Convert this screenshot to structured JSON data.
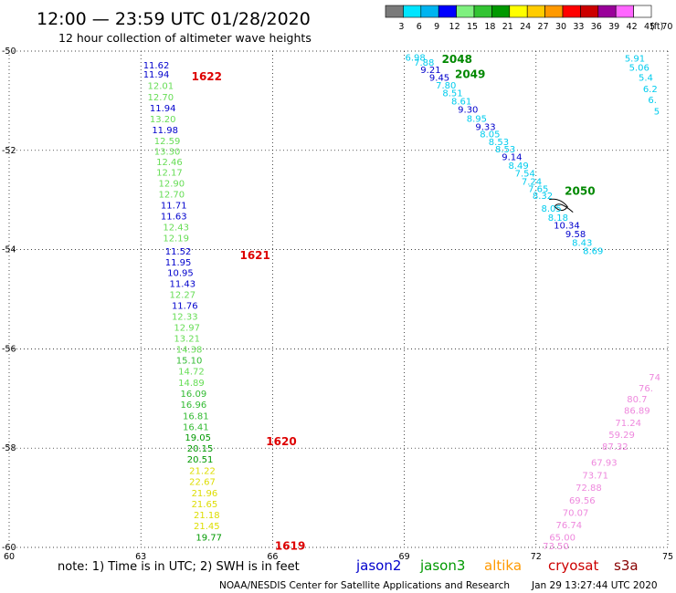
{
  "header": {
    "title": "12:00 — 23:59 UTC 01/28/2020",
    "subtitle": "12 hour collection of altimeter wave heights"
  },
  "color_scale": {
    "labels": [
      "3",
      "6",
      "9",
      "12",
      "15",
      "18",
      "21",
      "24",
      "27",
      "30",
      "33",
      "36",
      "39",
      "42",
      "45",
      "70"
    ],
    "unit": "(ft)",
    "colors": [
      "#7a7a7a",
      "#00e5ff",
      "#00b4f0",
      "#0000ff",
      "#7ff07f",
      "#33c433",
      "#009900",
      "#ffff00",
      "#ffcc00",
      "#ff9900",
      "#ff0000",
      "#cc0000",
      "#990099",
      "#ff66ff",
      "#ffffff"
    ]
  },
  "note": "note: 1) Time is in UTC; 2) SWH is in feet",
  "satellites": [
    {
      "name": "jason2",
      "color": "#0000cc"
    },
    {
      "name": "jason3",
      "color": "#009900"
    },
    {
      "name": "altika",
      "color": "#ff9900"
    },
    {
      "name": "cryosat",
      "color": "#cc0000"
    },
    {
      "name": "s3a",
      "color": "#880000"
    }
  ],
  "footer": {
    "credit": "NOAA/NESDIS Center for Satellite Applications and Research",
    "timestamp": "Jan 29 13:27:44 UTC 2020"
  },
  "chart_data": {
    "type": "scatter",
    "title": "12:00 — 23:59 UTC 01/28/2020",
    "subtitle": "12 hour collection of altimeter wave heights",
    "xlabel": "",
    "ylabel": "",
    "xlim": [
      60,
      75
    ],
    "ylim": [
      -60,
      -50
    ],
    "x_ticks": [
      "60",
      "63",
      "66",
      "69",
      "72",
      "75"
    ],
    "y_ticks": [
      "-50",
      "-52",
      "-54",
      "-56",
      "-58",
      "-60"
    ],
    "grid": true,
    "pass_labels": [
      {
        "label": "1622",
        "lon": 64.5,
        "lat": -50.5,
        "color": "#dd0000"
      },
      {
        "label": "1621",
        "lon": 65.6,
        "lat": -54.1,
        "color": "#dd0000"
      },
      {
        "label": "1620",
        "lon": 66.2,
        "lat": -57.85,
        "color": "#dd0000"
      },
      {
        "label": "1619",
        "lon": 66.4,
        "lat": -59.95,
        "color": "#dd0000"
      },
      {
        "label": "2048",
        "lon": 70.2,
        "lat": -50.15,
        "color": "#008800"
      },
      {
        "label": "2049",
        "lon": 70.5,
        "lat": -50.45,
        "color": "#008800"
      },
      {
        "label": "2050",
        "lon": 73.0,
        "lat": -52.8,
        "color": "#008800"
      }
    ],
    "series": [
      {
        "name": "1622",
        "points": [
          {
            "lon": 63.35,
            "lat": -50.28,
            "v": "11.62",
            "c": "#0000cc"
          },
          {
            "lon": 63.35,
            "lat": -50.46,
            "v": "11.94",
            "c": "#0000cc"
          },
          {
            "lon": 63.45,
            "lat": -50.69,
            "v": "12.01",
            "c": "#66dd55"
          },
          {
            "lon": 63.45,
            "lat": -50.92,
            "v": "12.70",
            "c": "#66dd55"
          },
          {
            "lon": 63.5,
            "lat": -51.14,
            "v": "11.94",
            "c": "#0000cc"
          },
          {
            "lon": 63.5,
            "lat": -51.36,
            "v": "13.20",
            "c": "#66dd55"
          },
          {
            "lon": 63.55,
            "lat": -51.58,
            "v": "11.98",
            "c": "#0000cc"
          },
          {
            "lon": 63.6,
            "lat": -51.8,
            "v": "12.59",
            "c": "#66dd55"
          },
          {
            "lon": 63.6,
            "lat": -52.01,
            "v": "13.30",
            "c": "#66dd55"
          },
          {
            "lon": 63.65,
            "lat": -52.22,
            "v": "12.46",
            "c": "#66dd55"
          },
          {
            "lon": 63.65,
            "lat": -52.44,
            "v": "12.17",
            "c": "#66dd55"
          },
          {
            "lon": 63.7,
            "lat": -52.66,
            "v": "12.90",
            "c": "#66dd55"
          },
          {
            "lon": 63.7,
            "lat": -52.88,
            "v": "12.70",
            "c": "#66dd55"
          },
          {
            "lon": 63.75,
            "lat": -53.1,
            "v": "11.71",
            "c": "#0000cc"
          },
          {
            "lon": 63.75,
            "lat": -53.32,
            "v": "11.63",
            "c": "#0000cc"
          },
          {
            "lon": 63.8,
            "lat": -53.54,
            "v": "12.43",
            "c": "#66dd55"
          },
          {
            "lon": 63.8,
            "lat": -53.76,
            "v": "12.19",
            "c": "#66dd55"
          }
        ]
      },
      {
        "name": "1621",
        "points": [
          {
            "lon": 63.85,
            "lat": -54.03,
            "v": "11.52",
            "c": "#0000cc"
          },
          {
            "lon": 63.85,
            "lat": -54.25,
            "v": "11.95",
            "c": "#0000cc"
          },
          {
            "lon": 63.9,
            "lat": -54.46,
            "v": "10.95",
            "c": "#0000cc"
          },
          {
            "lon": 63.95,
            "lat": -54.68,
            "v": "11.43",
            "c": "#0000cc"
          },
          {
            "lon": 63.95,
            "lat": -54.9,
            "v": "12.27",
            "c": "#66dd55"
          },
          {
            "lon": 64.0,
            "lat": -55.12,
            "v": "11.76",
            "c": "#0000cc"
          },
          {
            "lon": 64.0,
            "lat": -55.34,
            "v": "12.33",
            "c": "#66dd55"
          },
          {
            "lon": 64.05,
            "lat": -55.56,
            "v": "12.97",
            "c": "#66dd55"
          },
          {
            "lon": 64.05,
            "lat": -55.78,
            "v": "13.21",
            "c": "#66dd55"
          },
          {
            "lon": 64.1,
            "lat": -56.0,
            "v": "14.38",
            "c": "#66dd55"
          },
          {
            "lon": 64.1,
            "lat": -56.22,
            "v": "15.10",
            "c": "#33bb33"
          },
          {
            "lon": 64.15,
            "lat": -56.44,
            "v": "14.72",
            "c": "#66dd55"
          },
          {
            "lon": 64.15,
            "lat": -56.67,
            "v": "14.89",
            "c": "#66dd55"
          },
          {
            "lon": 64.2,
            "lat": -56.89,
            "v": "16.09",
            "c": "#33bb33"
          },
          {
            "lon": 64.2,
            "lat": -57.11,
            "v": "16.96",
            "c": "#33bb33"
          },
          {
            "lon": 64.25,
            "lat": -57.34,
            "v": "16.81",
            "c": "#33bb33"
          }
        ]
      },
      {
        "name": "1620",
        "points": [
          {
            "lon": 64.25,
            "lat": -57.56,
            "v": "16.41",
            "c": "#33bb33"
          },
          {
            "lon": 64.3,
            "lat": -57.78,
            "v": "19.05",
            "c": "#009900"
          },
          {
            "lon": 64.35,
            "lat": -58.0,
            "v": "20.15",
            "c": "#009900"
          },
          {
            "lon": 64.35,
            "lat": -58.22,
            "v": "20.51",
            "c": "#009900"
          },
          {
            "lon": 64.4,
            "lat": -58.45,
            "v": "21.22",
            "c": "#dddd00"
          },
          {
            "lon": 64.4,
            "lat": -58.67,
            "v": "22.67",
            "c": "#dddd00"
          },
          {
            "lon": 64.45,
            "lat": -58.9,
            "v": "21.96",
            "c": "#dddd00"
          },
          {
            "lon": 64.45,
            "lat": -59.12,
            "v": "21.65",
            "c": "#dddd00"
          },
          {
            "lon": 64.5,
            "lat": -59.34,
            "v": "21.18",
            "c": "#dddd00"
          },
          {
            "lon": 64.5,
            "lat": -59.56,
            "v": "21.45",
            "c": "#dddd00"
          }
        ]
      },
      {
        "name": "1619",
        "points": [
          {
            "lon": 64.55,
            "lat": -59.79,
            "v": "19.77",
            "c": "#009900"
          }
        ]
      },
      {
        "name": "2048/2049/2050",
        "points": [
          {
            "lon": 69.25,
            "lat": -50.12,
            "v": "6.98",
            "c": "#00ccee"
          },
          {
            "lon": 69.45,
            "lat": -50.22,
            "v": "7.88",
            "c": "#00ccee"
          },
          {
            "lon": 69.6,
            "lat": -50.37,
            "v": "9.21",
            "c": "#0000cc"
          },
          {
            "lon": 69.8,
            "lat": -50.52,
            "v": "9.45",
            "c": "#0000cc"
          },
          {
            "lon": 69.95,
            "lat": -50.68,
            "v": "7.80",
            "c": "#00ccee"
          },
          {
            "lon": 70.1,
            "lat": -50.84,
            "v": "8.51",
            "c": "#00ccee"
          },
          {
            "lon": 70.3,
            "lat": -51.0,
            "v": "8.61",
            "c": "#00ccee"
          },
          {
            "lon": 70.45,
            "lat": -51.17,
            "v": "9.30",
            "c": "#0000cc"
          },
          {
            "lon": 70.65,
            "lat": -51.35,
            "v": "8.95",
            "c": "#00ccee"
          },
          {
            "lon": 70.85,
            "lat": -51.52,
            "v": "9.33",
            "c": "#0000cc"
          },
          {
            "lon": 70.95,
            "lat": -51.66,
            "v": "8.05",
            "c": "#00ccee"
          },
          {
            "lon": 71.15,
            "lat": -51.82,
            "v": "8.53",
            "c": "#00ccee"
          },
          {
            "lon": 71.3,
            "lat": -51.97,
            "v": "8.53",
            "c": "#00ccee"
          },
          {
            "lon": 71.45,
            "lat": -52.12,
            "v": "9.14",
            "c": "#0000cc"
          },
          {
            "lon": 71.6,
            "lat": -52.3,
            "v": "8.49",
            "c": "#00ccee"
          },
          {
            "lon": 71.75,
            "lat": -52.45,
            "v": "7.54",
            "c": "#00ccee"
          },
          {
            "lon": 71.9,
            "lat": -52.62,
            "v": "7.24",
            "c": "#00ccee"
          },
          {
            "lon": 72.05,
            "lat": -52.77,
            "v": "7.65",
            "c": "#00ccee"
          },
          {
            "lon": 72.15,
            "lat": -52.9,
            "v": "8.32",
            "c": "#00ccee"
          },
          {
            "lon": 72.35,
            "lat": -53.16,
            "v": "8.05",
            "c": "#00ccee"
          },
          {
            "lon": 72.5,
            "lat": -53.35,
            "v": "8.18",
            "c": "#00ccee"
          },
          {
            "lon": 72.7,
            "lat": -53.5,
            "v": "10.34",
            "c": "#0000cc"
          },
          {
            "lon": 72.9,
            "lat": -53.68,
            "v": "9.58",
            "c": "#0000cc"
          },
          {
            "lon": 73.05,
            "lat": -53.85,
            "v": "8.43",
            "c": "#00ccee"
          },
          {
            "lon": 73.3,
            "lat": -54.02,
            "v": "8.69",
            "c": "#00ccee"
          }
        ]
      },
      {
        "name": "edge-east",
        "points": [
          {
            "lon": 74.25,
            "lat": -50.14,
            "v": "5.91",
            "c": "#00ccee"
          },
          {
            "lon": 74.35,
            "lat": -50.32,
            "v": "5.06",
            "c": "#00ccee"
          },
          {
            "lon": 74.5,
            "lat": -50.52,
            "v": "5.4",
            "c": "#00ccee"
          },
          {
            "lon": 74.6,
            "lat": -50.75,
            "v": "6.2",
            "c": "#00ccee"
          },
          {
            "lon": 74.65,
            "lat": -50.97,
            "v": "6.",
            "c": "#00ccee"
          },
          {
            "lon": 74.75,
            "lat": -51.2,
            "v": "5",
            "c": "#00ccee"
          }
        ]
      },
      {
        "name": "s3a",
        "points": [
          {
            "lon": 74.7,
            "lat": -56.56,
            "v": "74",
            "c": "#ee88dd"
          },
          {
            "lon": 74.5,
            "lat": -56.78,
            "v": "76.",
            "c": "#ee88dd"
          },
          {
            "lon": 74.3,
            "lat": -57.0,
            "v": "80.7",
            "c": "#ee88dd"
          },
          {
            "lon": 74.3,
            "lat": -57.23,
            "v": "86.89",
            "c": "#ee88dd"
          },
          {
            "lon": 74.1,
            "lat": -57.48,
            "v": "71.24",
            "c": "#ee88dd"
          },
          {
            "lon": 73.95,
            "lat": -57.72,
            "v": "59.29",
            "c": "#ee88dd"
          },
          {
            "lon": 73.8,
            "lat": -57.96,
            "v": "87.32",
            "c": "#ee88dd"
          },
          {
            "lon": 73.55,
            "lat": -58.28,
            "v": "67.93",
            "c": "#ee88dd"
          },
          {
            "lon": 73.35,
            "lat": -58.54,
            "v": "73.71",
            "c": "#ee88dd"
          },
          {
            "lon": 73.2,
            "lat": -58.79,
            "v": "72.88",
            "c": "#ee88dd"
          },
          {
            "lon": 73.05,
            "lat": -59.04,
            "v": "69.56",
            "c": "#ee88dd"
          },
          {
            "lon": 72.9,
            "lat": -59.29,
            "v": "70.07",
            "c": "#ee88dd"
          },
          {
            "lon": 72.75,
            "lat": -59.54,
            "v": "76.74",
            "c": "#ee88dd"
          },
          {
            "lon": 72.6,
            "lat": -59.79,
            "v": "65.00",
            "c": "#ee88dd"
          },
          {
            "lon": 72.45,
            "lat": -59.96,
            "v": "73.50",
            "c": "#ee88dd"
          }
        ]
      }
    ]
  }
}
